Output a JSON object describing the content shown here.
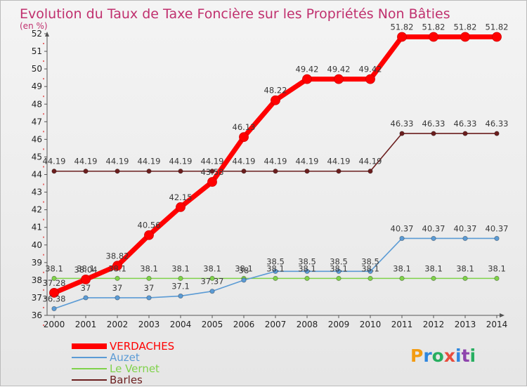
{
  "chart_data": {
    "type": "line",
    "title": "Evolution du Taux de Taxe Foncière sur les Propriétés Non Bâties",
    "ylabel": "(en %)",
    "xlabel": "",
    "ylim": [
      36,
      52
    ],
    "yticks": [
      36,
      37,
      38,
      39,
      40,
      41,
      42,
      43,
      44,
      45,
      46,
      47,
      48,
      49,
      50,
      51,
      52
    ],
    "x": [
      "2000",
      "2001",
      "2002",
      "2003",
      "2004",
      "2005",
      "2006",
      "2007",
      "2008",
      "2009",
      "2010",
      "2011",
      "2012",
      "2013",
      "2014"
    ],
    "grid": false,
    "legend_position": "bottom-left",
    "series": [
      {
        "name": "Barles",
        "color": "#6b1e1e",
        "values": [
          44.19,
          44.19,
          44.19,
          44.19,
          44.19,
          44.19,
          44.19,
          44.19,
          44.19,
          44.19,
          44.19,
          46.33,
          46.33,
          46.33,
          46.33
        ],
        "labels": [
          "44.19",
          "44.19",
          "44.19",
          "44.19",
          "44.19",
          "44.19",
          "44.19",
          "44.19",
          "44.19",
          "44.19",
          "44.19",
          "46.33",
          "46.33",
          "46.33",
          "46.33"
        ]
      },
      {
        "name": "Le Vernet",
        "color": "#7fd24a",
        "values": [
          38.1,
          38.1,
          38.1,
          38.1,
          38.1,
          38.1,
          38.1,
          38.1,
          38.1,
          38.1,
          38.1,
          38.1,
          38.1,
          38.1,
          38.1
        ],
        "labels": [
          "38.1",
          "38.1",
          "38.1",
          "38.1",
          "38.1",
          "38.1",
          "38.1",
          "38.1",
          "38.1",
          "38.1",
          "38.1",
          "38.1",
          "38.1",
          "38.1",
          "38.1"
        ]
      },
      {
        "name": "Auzet",
        "color": "#5b9bd5",
        "values": [
          36.38,
          37,
          37,
          37,
          37.1,
          37.37,
          38,
          38.5,
          38.5,
          38.5,
          38.5,
          40.37,
          40.37,
          40.37,
          40.37
        ],
        "labels": [
          "36.38",
          "37",
          "37",
          "37",
          "37.1",
          "37.37",
          "38",
          "38.5",
          "38.5",
          "38.5",
          "38.5",
          "40.37",
          "40.37",
          "40.37",
          "40.37"
        ]
      },
      {
        "name": "VERDACHES",
        "color": "#ff0000",
        "values": [
          37.28,
          38.04,
          38.82,
          40.56,
          42.15,
          43.58,
          46.13,
          48.22,
          49.42,
          49.42,
          49.42,
          51.82,
          51.82,
          51.82,
          51.82
        ],
        "labels": [
          "37.28",
          "38.04",
          "38.82",
          "40.56",
          "42.15",
          "43.58",
          "46.13",
          "48.22",
          "49.42",
          "49.42",
          "49.42",
          "51.82",
          "51.82",
          "51.82",
          "51.82"
        ]
      }
    ],
    "legend": [
      "VERDACHES",
      "Auzet",
      "Le Vernet",
      "Barles"
    ]
  },
  "branding": {
    "logo_text": "Proxiti"
  }
}
